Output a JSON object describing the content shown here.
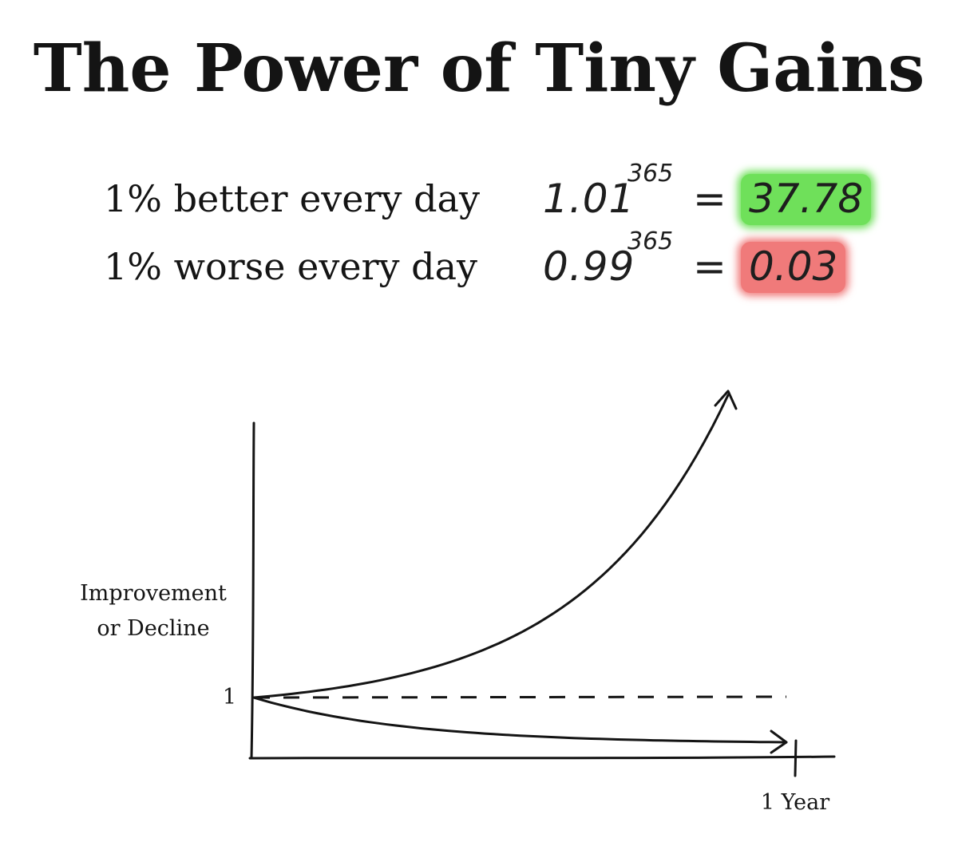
{
  "title": "The Power of Tiny Gains",
  "equations": [
    {
      "label": "1% better every day",
      "base": "1.01",
      "exponent": "365",
      "equals": "=",
      "result": "37.78",
      "highlight_color": "#6fe05a"
    },
    {
      "label": "1% worse every day",
      "base": "0.99",
      "exponent": "365",
      "equals": "=",
      "result": "0.03",
      "highlight_color": "#f07a7a"
    }
  ],
  "chart_data": {
    "type": "line",
    "ylabel": "Improvement or Decline",
    "ylabel_lines": [
      "Improvement",
      "or Decline"
    ],
    "y_tick_label": "1",
    "x_tick_label": "1 Year",
    "baseline_value": 1,
    "grid": false,
    "series": [
      {
        "style": "solid-arrow",
        "x": [
          0,
          365
        ],
        "y": [
          1,
          37.78
        ]
      },
      {
        "style": "solid-arrow",
        "x": [
          0,
          365
        ],
        "y": [
          1,
          0.03
        ]
      },
      {
        "style": "dashed",
        "x": [
          0,
          365
        ],
        "y": [
          1,
          1
        ]
      }
    ]
  }
}
